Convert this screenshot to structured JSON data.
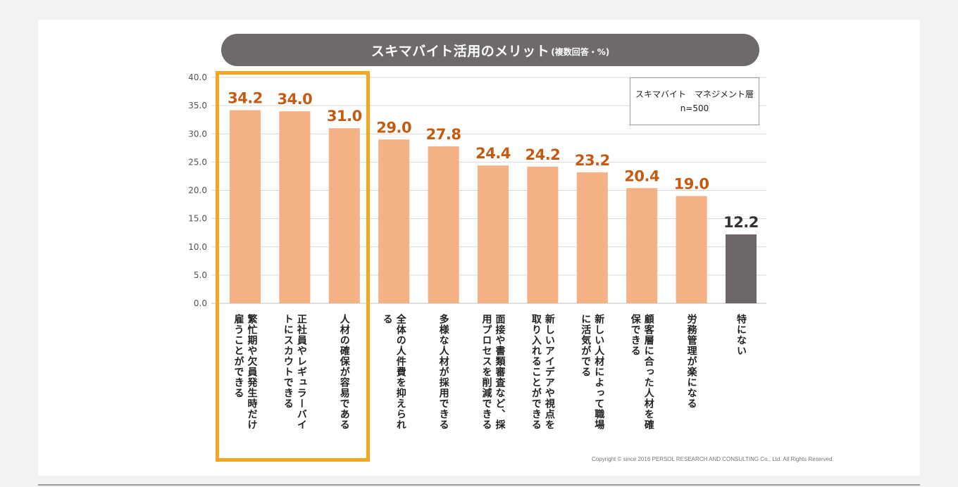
{
  "chart_data": {
    "type": "bar",
    "title": "スキマバイト活用のメリット",
    "subtitle": "(複数回答・%)",
    "legend": {
      "line1": "スキマバイト　マネジメント層",
      "line2": "n=500"
    },
    "ylim": [
      0,
      40
    ],
    "yticks": [
      "0.0",
      "5.0",
      "10.0",
      "15.0",
      "20.0",
      "25.0",
      "30.0",
      "35.0",
      "40.0"
    ],
    "categories": [
      "繁忙期や欠員発生時だけ雇うことができる",
      "正社員やレギュラーバイトにスカウトできる",
      "人材の確保が容易である",
      "全体の人件費を抑えられる",
      "多様な人材が採用できる",
      "面接や書類審査など、採用プロセスを削減できる",
      "新しいアイデアや視点を取り入れることができる",
      "新しい人材によって職場に活気がでる",
      "顧客層に合った人材を確保できる",
      "労務管理が楽になる",
      "特にない"
    ],
    "label_columns": [
      [
        "繁忙期や欠員発生時だけ",
        "雇うことができる"
      ],
      [
        "正社員やレギュラーバイ",
        "トにスカウトできる"
      ],
      [
        "人材の確保が容易である"
      ],
      [
        "全体の人件費を抑えられ",
        "る"
      ],
      [
        "多様な人材が採用できる"
      ],
      [
        "面接や書類審査など、採",
        "用プロセスを削減できる"
      ],
      [
        "新しいアイデアや視点を",
        "取り入れることができる"
      ],
      [
        "新しい人材によって職場",
        "に活気がでる"
      ],
      [
        "顧客層に合った人材を確",
        "保できる"
      ],
      [
        "労務管理が楽になる"
      ],
      [
        "特にない"
      ]
    ],
    "values": [
      34.2,
      34.0,
      31.0,
      29.0,
      27.8,
      24.4,
      24.2,
      23.2,
      20.4,
      19.0,
      12.2
    ],
    "value_labels": [
      "34.2",
      "34.0",
      "31.0",
      "29.0",
      "27.8",
      "24.4",
      "24.2",
      "23.2",
      "20.4",
      "19.0",
      "12.2"
    ],
    "colors": {
      "bar": "#f4b183",
      "bar_highlight_last": "#6e6767",
      "value_label": "#c55a11",
      "value_label_last": "#333333",
      "grid": "#d9d9d9",
      "highlight_border": "#f5a623"
    },
    "highlighted_categories": [
      0,
      1,
      2
    ]
  },
  "footer": {
    "copyright": "Copyright © since 2016 PERSOL RESEARCH AND CONSULTING Co., Ltd. All Rights Reserved."
  }
}
